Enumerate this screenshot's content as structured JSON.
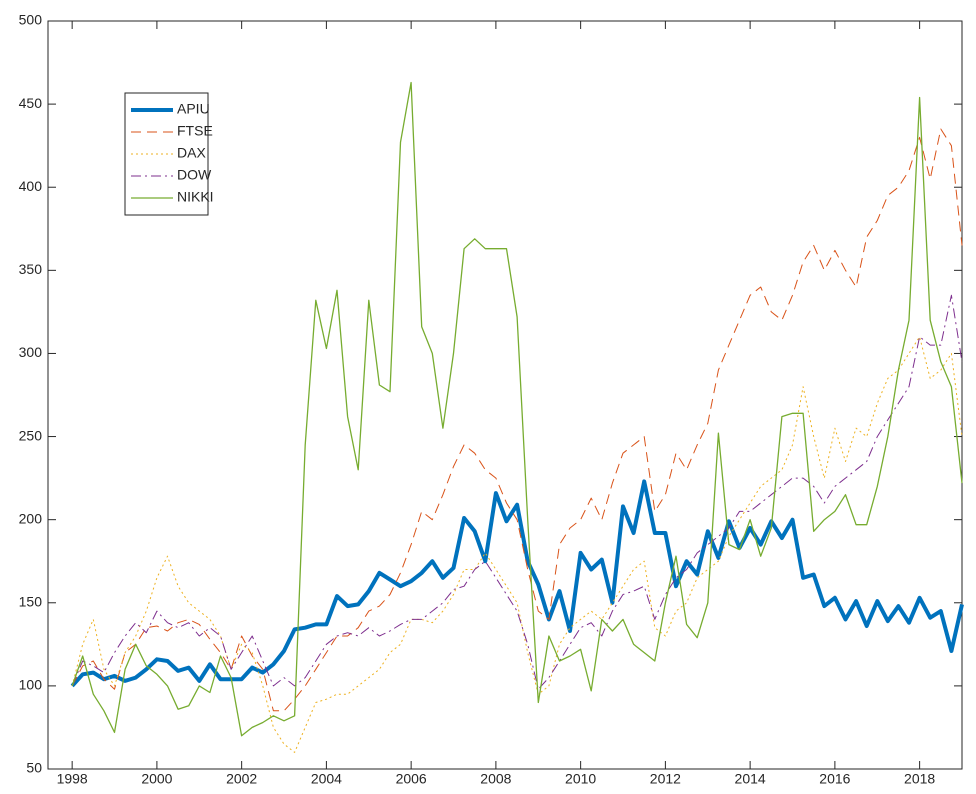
{
  "chart_data": {
    "type": "line",
    "x": [
      1998,
      1998.25,
      1998.5,
      1998.75,
      1999,
      1999.25,
      1999.5,
      1999.75,
      2000,
      2000.25,
      2000.5,
      2000.75,
      2001,
      2001.25,
      2001.5,
      2001.75,
      2002,
      2002.25,
      2002.5,
      2002.75,
      2003,
      2003.25,
      2003.5,
      2003.75,
      2004,
      2004.25,
      2004.5,
      2004.75,
      2005,
      2005.25,
      2005.5,
      2005.75,
      2006,
      2006.25,
      2006.5,
      2006.75,
      2007,
      2007.25,
      2007.5,
      2007.75,
      2008,
      2008.25,
      2008.5,
      2008.75,
      2009,
      2009.25,
      2009.5,
      2009.75,
      2010,
      2010.25,
      2010.5,
      2010.75,
      2011,
      2011.25,
      2011.5,
      2011.75,
      2012,
      2012.25,
      2012.5,
      2012.75,
      2013,
      2013.25,
      2013.5,
      2013.75,
      2014,
      2014.25,
      2014.5,
      2014.75,
      2015,
      2015.25,
      2015.5,
      2015.75,
      2016,
      2016.25,
      2016.5,
      2016.75,
      2017,
      2017.25,
      2017.5,
      2017.75,
      2018,
      2018.25,
      2018.5,
      2018.75,
      2019
    ],
    "series": [
      {
        "name": "APIU",
        "color": "#0072bd",
        "style": "solid",
        "width": 4,
        "values": [
          100,
          107,
          108,
          104,
          106,
          103,
          105,
          110,
          116,
          115,
          109,
          111,
          103,
          113,
          104,
          104,
          104,
          111,
          108,
          113,
          121,
          134,
          135,
          137,
          137,
          154,
          148,
          149,
          157,
          168,
          164,
          160,
          163,
          168,
          175,
          165,
          171,
          201,
          193,
          175,
          216,
          199,
          209,
          175,
          161,
          140,
          157,
          133,
          180,
          170,
          176,
          150,
          208,
          192,
          223,
          192,
          192,
          160,
          175,
          167,
          193,
          177,
          199,
          183,
          195,
          185,
          199,
          189,
          200,
          165,
          167,
          148,
          153,
          140,
          151,
          136,
          151,
          139,
          148,
          138,
          153,
          141,
          145,
          121,
          149
        ]
      },
      {
        "name": "FTSE",
        "color": "#d95319",
        "style": "dashed",
        "width": 1,
        "values": [
          100,
          112,
          115,
          104,
          98,
          120,
          125,
          135,
          136,
          133,
          138,
          140,
          137,
          128,
          120,
          110,
          130,
          118,
          110,
          85,
          85,
          92,
          100,
          110,
          120,
          130,
          130,
          135,
          145,
          148,
          155,
          168,
          185,
          205,
          200,
          215,
          232,
          245,
          240,
          230,
          225,
          210,
          200,
          170,
          145,
          140,
          185,
          195,
          200,
          213,
          200,
          222,
          240,
          245,
          250,
          205,
          215,
          240,
          230,
          245,
          258,
          290,
          305,
          320,
          335,
          340,
          325,
          320,
          335,
          355,
          365,
          350,
          362,
          350,
          340,
          370,
          380,
          395,
          400,
          410,
          430,
          405,
          435,
          425,
          365
        ]
      },
      {
        "name": "DAX",
        "color": "#edb120",
        "style": "dotted",
        "width": 1,
        "values": [
          100,
          125,
          140,
          110,
          100,
          120,
          130,
          145,
          165,
          178,
          160,
          150,
          145,
          140,
          130,
          110,
          125,
          120,
          100,
          75,
          65,
          60,
          75,
          90,
          92,
          95,
          95,
          100,
          105,
          110,
          120,
          125,
          140,
          140,
          138,
          145,
          155,
          170,
          170,
          180,
          170,
          160,
          150,
          120,
          95,
          100,
          125,
          135,
          140,
          145,
          140,
          150,
          160,
          170,
          175,
          135,
          130,
          145,
          150,
          165,
          170,
          175,
          190,
          200,
          210,
          220,
          225,
          230,
          245,
          280,
          250,
          225,
          255,
          235,
          255,
          250,
          270,
          285,
          290,
          300,
          310,
          285,
          290,
          300,
          250
        ]
      },
      {
        "name": "DOW",
        "color": "#7e2f8e",
        "style": "dashdot",
        "width": 1,
        "values": [
          100,
          115,
          112,
          108,
          120,
          130,
          138,
          132,
          145,
          138,
          135,
          138,
          130,
          135,
          130,
          110,
          120,
          130,
          115,
          100,
          105,
          100,
          105,
          115,
          125,
          130,
          132,
          130,
          135,
          130,
          133,
          137,
          140,
          140,
          145,
          150,
          158,
          160,
          170,
          175,
          165,
          155,
          145,
          125,
          98,
          105,
          115,
          125,
          135,
          138,
          130,
          145,
          155,
          157,
          160,
          140,
          155,
          165,
          170,
          180,
          185,
          190,
          195,
          205,
          205,
          210,
          215,
          220,
          225,
          225,
          220,
          210,
          220,
          225,
          230,
          235,
          250,
          260,
          270,
          280,
          310,
          305,
          305,
          335,
          295
        ]
      },
      {
        "name": "NIKKI",
        "color": "#77ac30",
        "style": "solid",
        "width": 1.3,
        "values": [
          100,
          118,
          95,
          85,
          72,
          110,
          125,
          112,
          107,
          100,
          86,
          88,
          100,
          96,
          118,
          105,
          70,
          75,
          78,
          82,
          79,
          82,
          245,
          332,
          303,
          338,
          262,
          230,
          332,
          281,
          277,
          427,
          463,
          316,
          300,
          255,
          300,
          363,
          369,
          363,
          363,
          363,
          322,
          200,
          90,
          130,
          115,
          118,
          122,
          97,
          140,
          133,
          140,
          125,
          120,
          115,
          150,
          178,
          137,
          129,
          150,
          252,
          185,
          182,
          200,
          178,
          195,
          262,
          264,
          264,
          193,
          200,
          205,
          215,
          197,
          197,
          220,
          250,
          290,
          320,
          454,
          320,
          295,
          280,
          222
        ]
      }
    ],
    "xlim": [
      1997.43,
      2019
    ],
    "ylim": [
      50,
      500
    ],
    "xticks": [
      1998,
      2000,
      2002,
      2004,
      2006,
      2008,
      2010,
      2012,
      2014,
      2016,
      2018
    ],
    "yticks": [
      50,
      100,
      150,
      200,
      250,
      300,
      350,
      400,
      450,
      500
    ],
    "legend": "upper-left",
    "grid": false
  }
}
